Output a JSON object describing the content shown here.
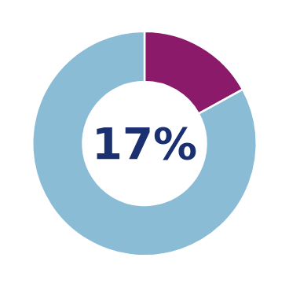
{
  "chart_data": {
    "type": "donut",
    "values": [
      17,
      83
    ],
    "colors": [
      "#8B1A6B",
      "#8BBCD6"
    ],
    "annotations": [
      {
        "text": "17%",
        "color": "#1B3070"
      }
    ]
  }
}
